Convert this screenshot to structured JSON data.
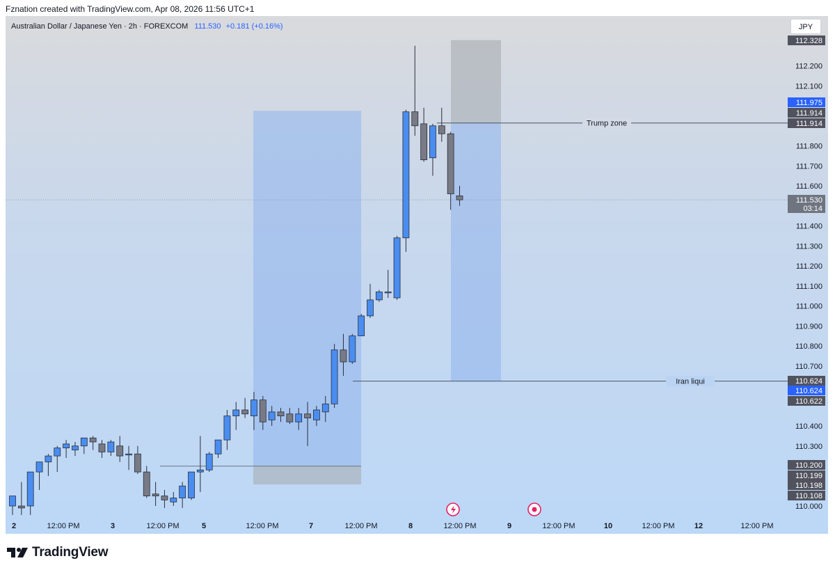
{
  "header": {
    "caption": "Fznation created with TradingView.com, Apr 08, 2026 11:56 UTC+1"
  },
  "symbol": {
    "description": "Australian Dollar / Japanese Yen · 2h · FOREXCOM",
    "price": "111.530",
    "change": "+0.181 (+0.16%)"
  },
  "currency_button": "JPY",
  "footer": {
    "brand": "TradingView"
  },
  "colors": {
    "up": "#4a8df0",
    "down": "#787b86",
    "accent": "#2962ff",
    "zone_blue": "#8fb4ec",
    "zone_gray": "#a9adb3"
  },
  "chart_data": {
    "type": "candlestick",
    "instrument": "Australian Dollar / Japanese Yen",
    "interval": "2h",
    "ylim": [
      110.0,
      112.35
    ],
    "xaxis_ticks": [
      "2",
      "12:00 PM",
      "3",
      "12:00 PM",
      "5",
      "12:00 PM",
      "7",
      "12:00 PM",
      "8",
      "12:00 PM",
      "9",
      "12:00 PM",
      "10",
      "12:00 PM",
      "12",
      "12:00 PM"
    ],
    "yaxis_ticks": [
      "110.000",
      "110.300",
      "110.400",
      "110.700",
      "110.800",
      "110.900",
      "111.000",
      "111.100",
      "111.200",
      "111.300",
      "111.400",
      "111.600",
      "111.700",
      "111.800",
      "112.100",
      "112.200"
    ],
    "price_labels": [
      {
        "text": "112.328",
        "kind": "dark"
      },
      {
        "text": "111.975",
        "kind": "blue"
      },
      {
        "text": "111.914",
        "kind": "dark"
      },
      {
        "text": "111.914",
        "kind": "dark"
      },
      {
        "text": "111.530",
        "sub": "03:14",
        "kind": "gray"
      },
      {
        "text": "110.624",
        "kind": "dark"
      },
      {
        "text": "110.624",
        "kind": "blue"
      },
      {
        "text": "110.622",
        "kind": "dark"
      },
      {
        "text": "110.200",
        "kind": "dark"
      },
      {
        "text": "110.199",
        "kind": "dark"
      },
      {
        "text": "110.198",
        "kind": "dark"
      },
      {
        "text": "110.108",
        "kind": "dark"
      }
    ],
    "candles": [
      {
        "o": 110.0,
        "h": 110.05,
        "l": 109.95,
        "c": 110.05
      },
      {
        "o": 110.0,
        "h": 110.12,
        "l": 109.95,
        "c": 109.99
      },
      {
        "o": 110.0,
        "h": 110.17,
        "l": 109.95,
        "c": 110.17
      },
      {
        "o": 110.17,
        "h": 110.22,
        "l": 110.08,
        "c": 110.22
      },
      {
        "o": 110.22,
        "h": 110.26,
        "l": 110.15,
        "c": 110.25
      },
      {
        "o": 110.25,
        "h": 110.3,
        "l": 110.17,
        "c": 110.29
      },
      {
        "o": 110.29,
        "h": 110.33,
        "l": 110.24,
        "c": 110.31
      },
      {
        "o": 110.28,
        "h": 110.32,
        "l": 110.25,
        "c": 110.3
      },
      {
        "o": 110.3,
        "h": 110.34,
        "l": 110.26,
        "c": 110.34
      },
      {
        "o": 110.34,
        "h": 110.35,
        "l": 110.28,
        "c": 110.32
      },
      {
        "o": 110.31,
        "h": 110.33,
        "l": 110.24,
        "c": 110.27
      },
      {
        "o": 110.27,
        "h": 110.33,
        "l": 110.25,
        "c": 110.32
      },
      {
        "o": 110.3,
        "h": 110.35,
        "l": 110.22,
        "c": 110.25
      },
      {
        "o": 110.26,
        "h": 110.3,
        "l": 110.18,
        "c": 110.26
      },
      {
        "o": 110.26,
        "h": 110.3,
        "l": 110.16,
        "c": 110.17
      },
      {
        "o": 110.17,
        "h": 110.2,
        "l": 110.04,
        "c": 110.05
      },
      {
        "o": 110.06,
        "h": 110.12,
        "l": 110.0,
        "c": 110.05
      },
      {
        "o": 110.05,
        "h": 110.08,
        "l": 109.99,
        "c": 110.03
      },
      {
        "o": 110.02,
        "h": 110.07,
        "l": 110.0,
        "c": 110.04
      },
      {
        "o": 110.04,
        "h": 110.12,
        "l": 109.99,
        "c": 110.1
      },
      {
        "o": 110.04,
        "h": 110.17,
        "l": 110.03,
        "c": 110.17
      },
      {
        "o": 110.17,
        "h": 110.35,
        "l": 110.07,
        "c": 110.18
      },
      {
        "o": 110.18,
        "h": 110.27,
        "l": 110.17,
        "c": 110.26
      },
      {
        "o": 110.26,
        "h": 110.33,
        "l": 110.24,
        "c": 110.33
      },
      {
        "o": 110.33,
        "h": 110.48,
        "l": 110.28,
        "c": 110.45
      },
      {
        "o": 110.45,
        "h": 110.52,
        "l": 110.38,
        "c": 110.48
      },
      {
        "o": 110.48,
        "h": 110.54,
        "l": 110.44,
        "c": 110.46
      },
      {
        "o": 110.45,
        "h": 110.57,
        "l": 110.38,
        "c": 110.53
      },
      {
        "o": 110.53,
        "h": 110.55,
        "l": 110.38,
        "c": 110.42
      },
      {
        "o": 110.43,
        "h": 110.5,
        "l": 110.4,
        "c": 110.47
      },
      {
        "o": 110.47,
        "h": 110.49,
        "l": 110.42,
        "c": 110.45
      },
      {
        "o": 110.46,
        "h": 110.49,
        "l": 110.41,
        "c": 110.42
      },
      {
        "o": 110.42,
        "h": 110.49,
        "l": 110.38,
        "c": 110.46
      },
      {
        "o": 110.46,
        "h": 110.52,
        "l": 110.3,
        "c": 110.44
      },
      {
        "o": 110.43,
        "h": 110.5,
        "l": 110.4,
        "c": 110.48
      },
      {
        "o": 110.47,
        "h": 110.55,
        "l": 110.42,
        "c": 110.51
      },
      {
        "o": 110.51,
        "h": 110.81,
        "l": 110.49,
        "c": 110.78
      },
      {
        "o": 110.78,
        "h": 110.86,
        "l": 110.65,
        "c": 110.72
      },
      {
        "o": 110.72,
        "h": 110.86,
        "l": 110.71,
        "c": 110.85
      },
      {
        "o": 110.85,
        "h": 110.96,
        "l": 110.85,
        "c": 110.95
      },
      {
        "o": 110.95,
        "h": 111.11,
        "l": 110.94,
        "c": 111.03
      },
      {
        "o": 111.03,
        "h": 111.08,
        "l": 111.02,
        "c": 111.07
      },
      {
        "o": 111.07,
        "h": 111.18,
        "l": 111.04,
        "c": 111.07
      },
      {
        "o": 111.04,
        "h": 111.35,
        "l": 111.03,
        "c": 111.34
      },
      {
        "o": 111.34,
        "h": 111.98,
        "l": 111.27,
        "c": 111.97
      },
      {
        "o": 111.97,
        "h": 112.3,
        "l": 111.85,
        "c": 111.9
      },
      {
        "o": 111.91,
        "h": 111.99,
        "l": 111.72,
        "c": 111.73
      },
      {
        "o": 111.74,
        "h": 111.91,
        "l": 111.65,
        "c": 111.9
      },
      {
        "o": 111.9,
        "h": 111.99,
        "l": 111.82,
        "c": 111.86
      },
      {
        "o": 111.86,
        "h": 111.87,
        "l": 111.48,
        "c": 111.56
      },
      {
        "o": 111.55,
        "h": 111.6,
        "l": 111.5,
        "c": 111.53
      }
    ],
    "annotations": [
      {
        "text": "Trump zone",
        "price": 111.914
      },
      {
        "text": "Iran liqui",
        "price": 110.624
      }
    ],
    "zones": [
      {
        "from_price": 110.2,
        "to_price": 111.975,
        "color": "blue"
      },
      {
        "from_price": 110.108,
        "to_price": 110.198,
        "color": "gray"
      },
      {
        "from_price": 110.622,
        "to_price": 111.914,
        "color": "blue"
      },
      {
        "from_price": 111.914,
        "to_price": 112.328,
        "color": "gray"
      }
    ],
    "horizontal_lines": [
      110.199,
      111.53
    ]
  }
}
